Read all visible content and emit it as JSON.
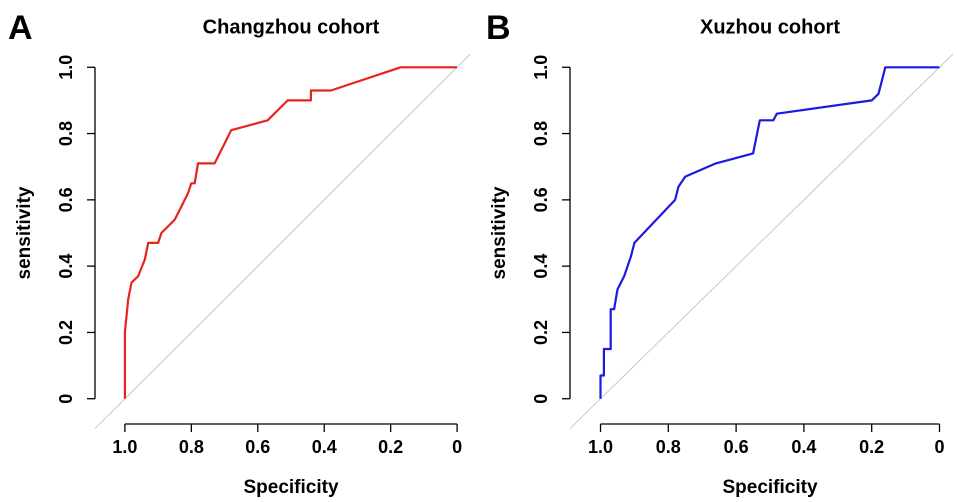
{
  "chart_data": [
    {
      "type": "line",
      "panel_label": "A",
      "title": "Changzhou cohort",
      "x_label": "Specificity",
      "y_label": "sensitivity",
      "color": "#e8231c",
      "x": [
        1,
        1,
        0.99,
        0.98,
        0.96,
        0.94,
        0.93,
        0.9,
        0.89,
        0.87,
        0.85,
        0.83,
        0.81,
        0.8,
        0.79,
        0.78,
        0.73,
        0.69,
        0.68,
        0.57,
        0.51,
        0.44,
        0.44,
        0.38,
        0.17,
        0
      ],
      "values": [
        0,
        0.2,
        0.3,
        0.35,
        0.37,
        0.42,
        0.47,
        0.47,
        0.5,
        0.52,
        0.54,
        0.58,
        0.62,
        0.65,
        0.65,
        0.71,
        0.71,
        0.79,
        0.81,
        0.84,
        0.9,
        0.9,
        0.93,
        0.93,
        1,
        1
      ],
      "xlim": [
        1.09,
        -0.09
      ],
      "ylim": [
        -0.04,
        1.04
      ],
      "xticks": [
        {
          "value": 1,
          "label": "1.0"
        },
        0.8,
        0.6,
        0.4,
        0.2,
        0
      ],
      "yticks": [
        0,
        0.2,
        0.4,
        0.6,
        0.8,
        {
          "value": 1,
          "label": "1.0"
        }
      ]
    },
    {
      "type": "line",
      "panel_label": "B",
      "title": "Xuzhou cohort",
      "x_label": "Specificity",
      "y_label": "sensitivity",
      "color": "#1a1ae0",
      "x": [
        1,
        1,
        0.99,
        0.99,
        0.97,
        0.97,
        0.96,
        0.95,
        0.93,
        0.91,
        0.9,
        0.78,
        0.77,
        0.75,
        0.66,
        0.55,
        0.53,
        0.49,
        0.48,
        0.2,
        0.18,
        0.16,
        0
      ],
      "values": [
        0,
        0.07,
        0.07,
        0.15,
        0.15,
        0.27,
        0.27,
        0.33,
        0.37,
        0.43,
        0.47,
        0.6,
        0.64,
        0.67,
        0.71,
        0.74,
        0.84,
        0.84,
        0.86,
        0.9,
        0.92,
        1,
        1
      ],
      "xlim": [
        1.09,
        -0.09
      ],
      "ylim": [
        -0.04,
        1.04
      ],
      "xticks": [
        {
          "value": 1,
          "label": "1.0"
        },
        0.8,
        0.6,
        0.4,
        0.2,
        0
      ],
      "yticks": [
        0,
        0.2,
        0.4,
        0.6,
        0.8,
        {
          "value": 1,
          "label": "1.0"
        }
      ]
    }
  ]
}
